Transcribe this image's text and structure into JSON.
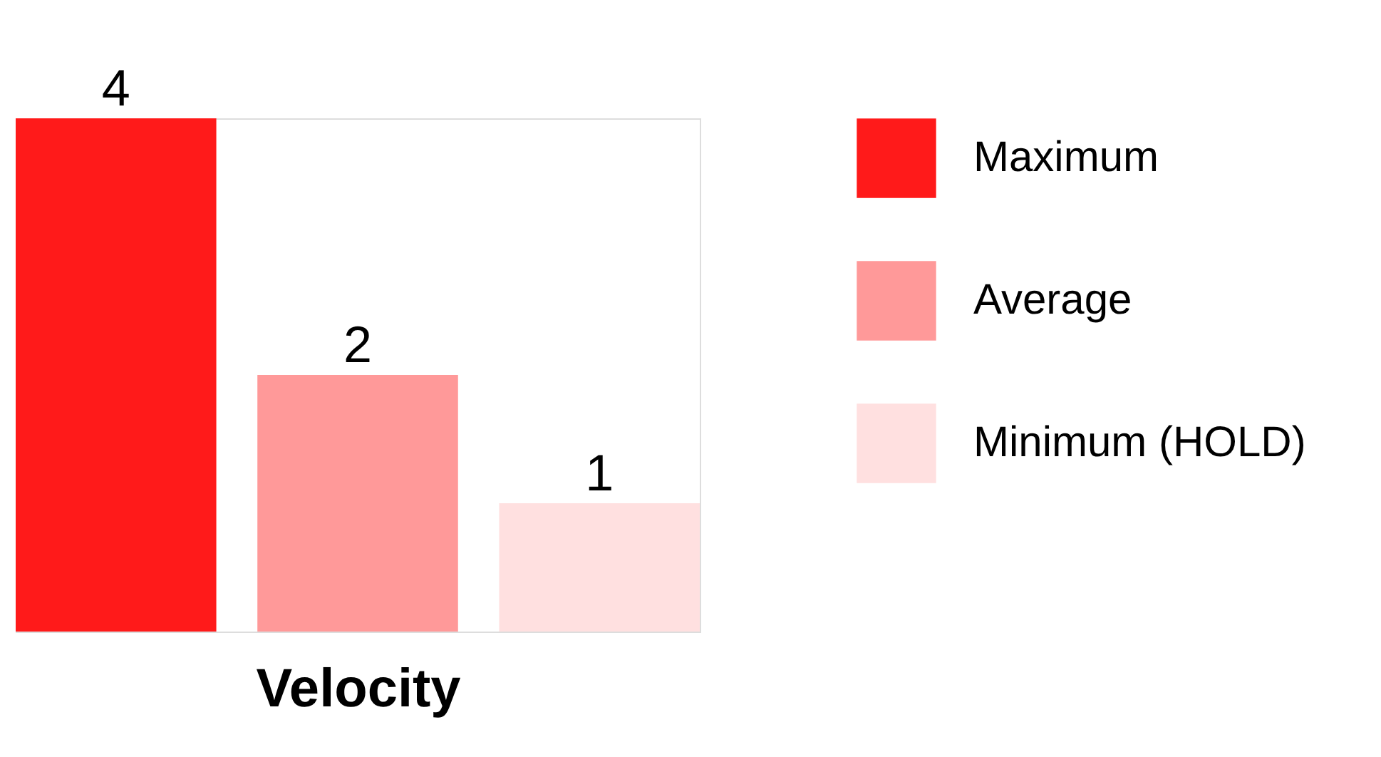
{
  "chart_data": {
    "type": "bar",
    "xlabel": "Velocity",
    "categories": [
      null
    ],
    "ylim": [
      0,
      4
    ],
    "data_labels": true,
    "legend": "right",
    "series": [
      {
        "name": "Maximum",
        "color": "#ff1a1a",
        "values": [
          4
        ]
      },
      {
        "name": "Average",
        "color": "#ff9999",
        "values": [
          2
        ]
      },
      {
        "name": "Minimum (HOLD)",
        "color": "#ffe0e0",
        "values": [
          1
        ]
      }
    ]
  }
}
